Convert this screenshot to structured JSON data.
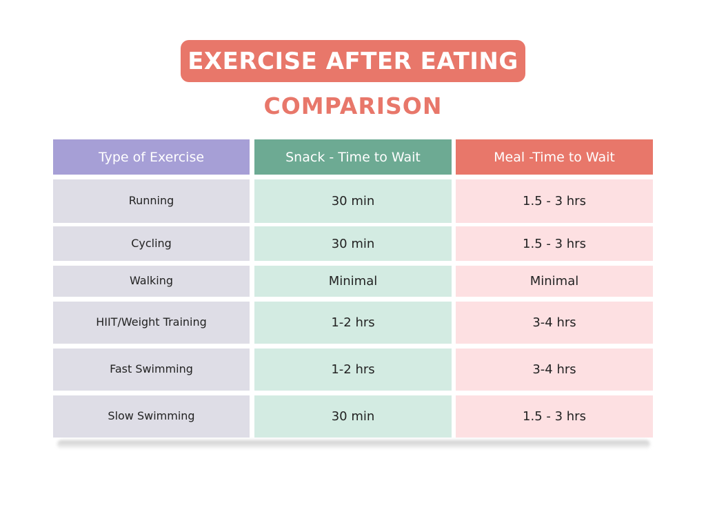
{
  "title": "EXERCISE AFTER EATING",
  "subtitle": "COMPARISON",
  "colors": {
    "accent": "#e8776a",
    "header_col1": "#a69fd6",
    "header_col2": "#6daa93",
    "header_col3": "#e8776a",
    "cell_col1": "#dedde6",
    "cell_col2": "#d3ebe2",
    "cell_col3": "#fde0e2"
  },
  "chart_data": {
    "type": "table",
    "title": "EXERCISE AFTER EATING",
    "subtitle": "COMPARISON",
    "columns": [
      "Type of Exercise",
      "Snack - Time to Wait",
      "Meal -Time to Wait"
    ],
    "rows": [
      [
        "Running",
        "30 min",
        "1.5 - 3 hrs"
      ],
      [
        "Cycling",
        "30 min",
        "1.5 - 3 hrs"
      ],
      [
        "Walking",
        "Minimal",
        "Minimal"
      ],
      [
        "HIIT/Weight Training",
        "1-2 hrs",
        "3-4 hrs"
      ],
      [
        "Fast Swimming",
        "1-2 hrs",
        "3-4 hrs"
      ],
      [
        "Slow Swimming",
        "30 min",
        "1.5 - 3 hrs"
      ]
    ]
  }
}
